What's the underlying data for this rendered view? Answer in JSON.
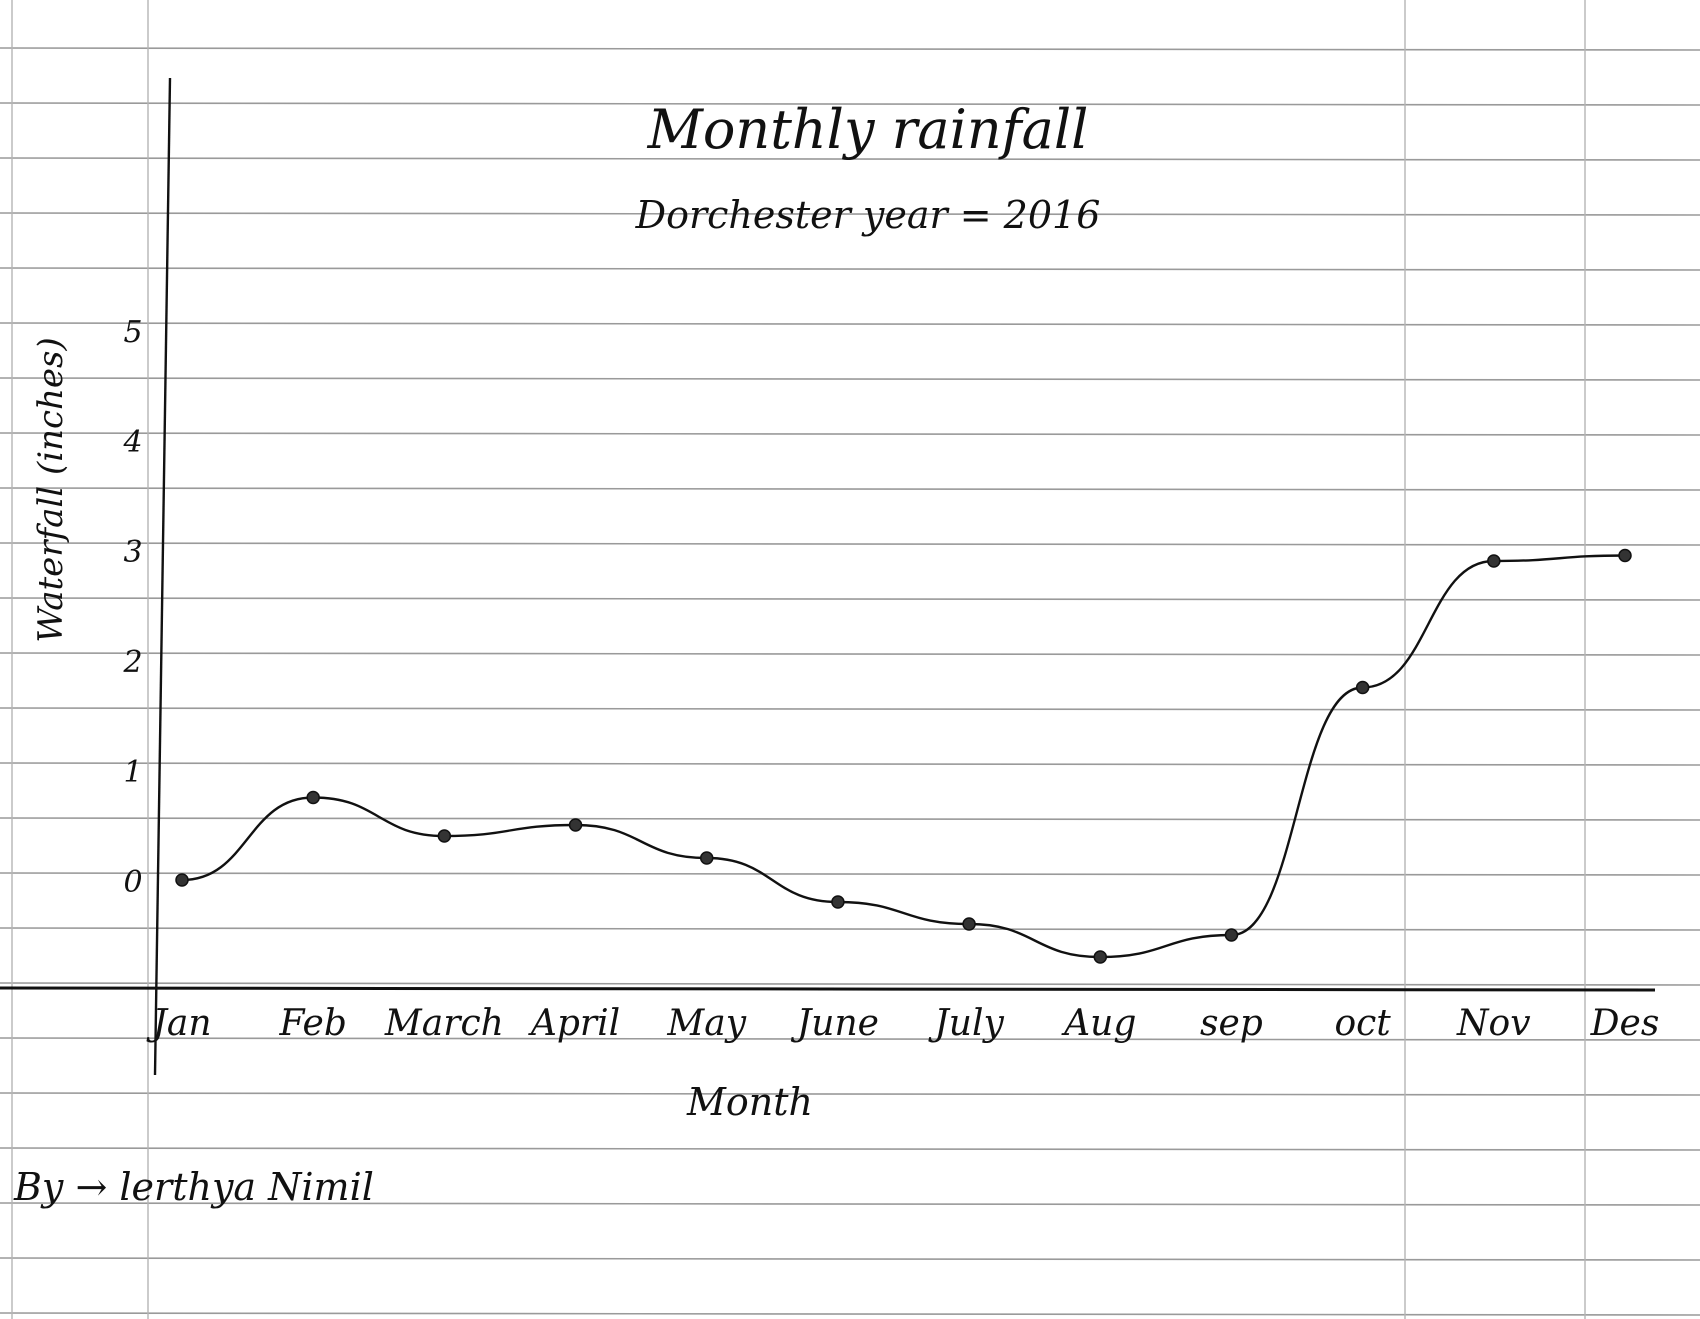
{
  "chart_data": {
    "type": "line",
    "title": "Monthly rainfall",
    "subtitle": "Dorchester year = 2016",
    "xlabel": "Month",
    "ylabel": "Waterfall (inches)",
    "x": [
      "Jan",
      "Feb",
      "March",
      "April",
      "May",
      "June",
      "July",
      "Aug",
      "sep",
      "oct",
      "Nov",
      "Des"
    ],
    "yticks": [
      "0",
      "1",
      "2",
      "3",
      "4",
      "5"
    ],
    "ylim": [
      -1,
      5
    ],
    "grid": true,
    "series": [
      {
        "values": [
          0.0,
          0.75,
          0.4,
          0.5,
          0.2,
          -0.2,
          -0.4,
          -0.7,
          -0.5,
          1.75,
          2.9,
          2.95
        ]
      }
    ]
  },
  "footer": {
    "author": "By → lerthya Nimil"
  },
  "colors": {
    "ink": "#111111",
    "rule": "#9a9a9a",
    "paper": "#ffffff"
  }
}
